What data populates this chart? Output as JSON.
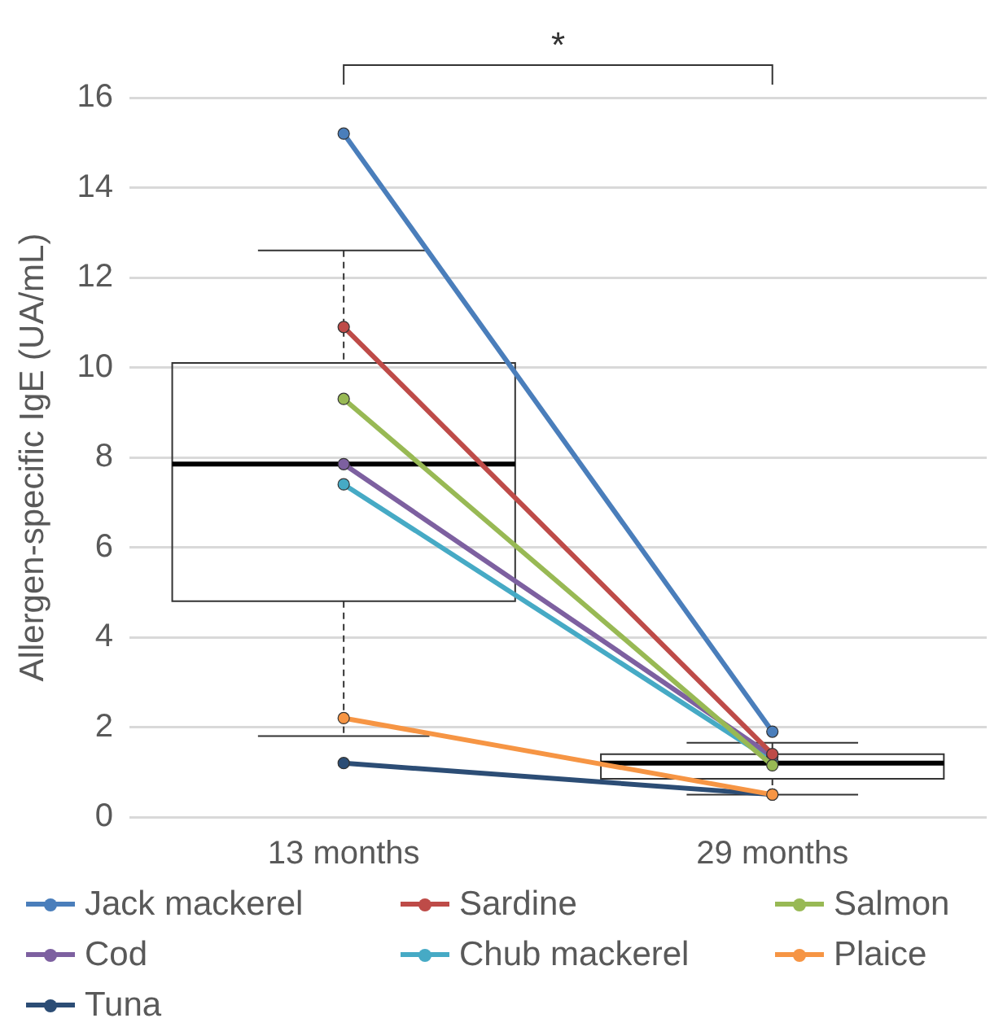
{
  "chart_data": {
    "type": "box",
    "ylabel": "Allergen-specific IgE (UA/mL)",
    "categories": [
      "13 months",
      "29 months"
    ],
    "ylim": [
      0,
      16
    ],
    "yticks": [
      0,
      2,
      4,
      6,
      8,
      10,
      12,
      14,
      16
    ],
    "grid": "y",
    "legend": "bottom",
    "marker": "circle",
    "annotations": [
      "*"
    ],
    "boxes": [
      {
        "low": 1.8,
        "q1": 4.8,
        "median": 7.85,
        "q3": 10.1,
        "high": 12.6
      },
      {
        "low": 0.5,
        "q1": 0.85,
        "median": 1.2,
        "q3": 1.4,
        "high": 1.65
      }
    ],
    "series": [
      {
        "name": "Jack mackerel",
        "type": "line",
        "color": "#4a7ebb",
        "values": [
          15.2,
          1.9
        ]
      },
      {
        "name": "Sardine",
        "type": "line",
        "color": "#be4b48",
        "values": [
          10.9,
          1.4
        ]
      },
      {
        "name": "Salmon",
        "type": "line",
        "color": "#98b954",
        "values": [
          9.3,
          1.15
        ]
      },
      {
        "name": "Cod",
        "type": "line",
        "color": "#7d60a0",
        "values": [
          7.85,
          1.35
        ]
      },
      {
        "name": "Chub mackerel",
        "type": "line",
        "color": "#46aac5",
        "values": [
          7.4,
          1.25
        ]
      },
      {
        "name": "Plaice",
        "type": "line",
        "color": "#f69544",
        "values": [
          2.2,
          0.5
        ]
      },
      {
        "name": "Tuna",
        "type": "line",
        "color": "#2c4d75",
        "values": [
          1.2,
          0.5
        ]
      }
    ]
  }
}
